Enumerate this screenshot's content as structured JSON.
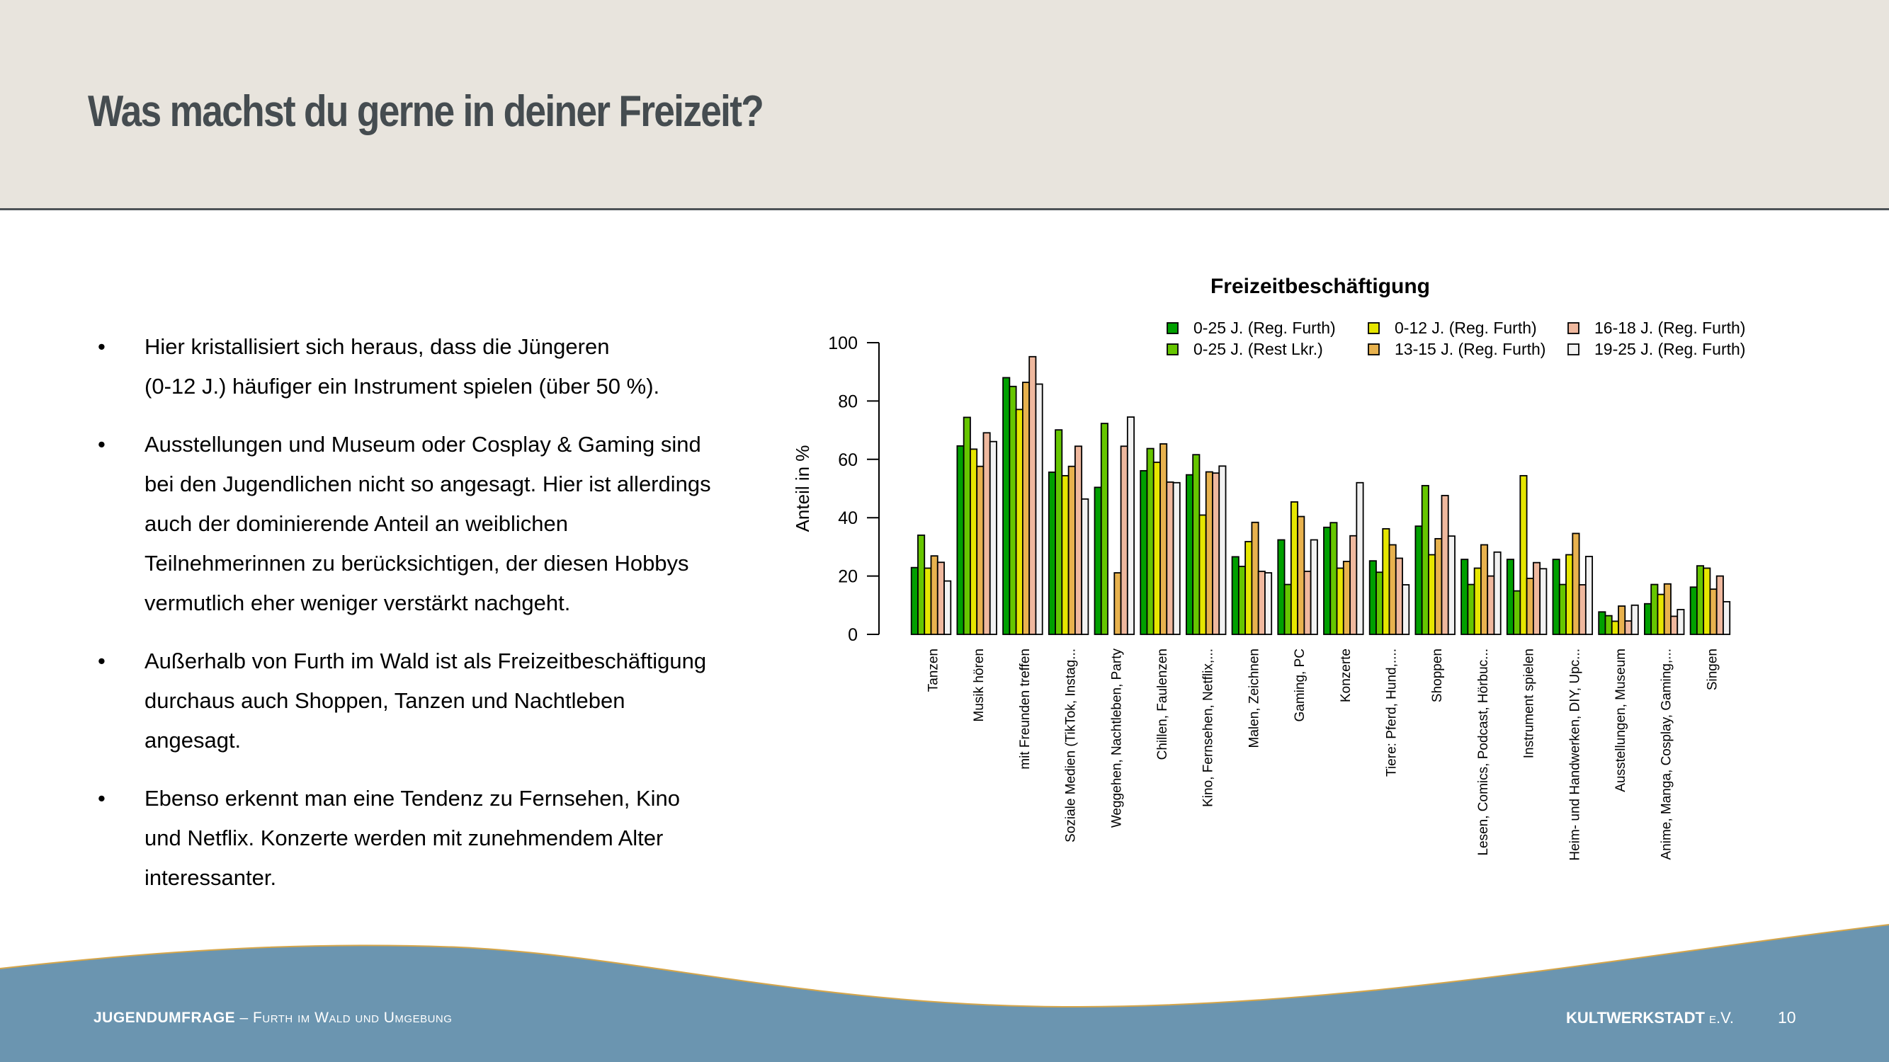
{
  "header": {
    "title": "Was machst du gerne in deiner Freizeit?"
  },
  "bullets": [
    {
      "lines": [
        "Hier kristallisiert sich heraus, dass die Jüngeren",
        "(0-12 J.) häufiger ein Instrument spielen (über 50 %)."
      ]
    },
    {
      "lines": [
        "Ausstellungen und Museum oder Cosplay & Gaming sind",
        "bei den Jugendlichen nicht so angesagt. Hier ist allerdings",
        "auch der dominierende Anteil an weiblichen",
        "Teilnehmerinnen zu berücksichtigen, der diesen Hobbys",
        "vermutlich eher weniger verstärkt nachgeht."
      ]
    },
    {
      "lines": [
        "Außerhalb von Furth im Wald ist als Freizeitbeschäftigung",
        "durchaus auch Shoppen, Tanzen und Nachtleben",
        "angesagt."
      ]
    },
    {
      "lines": [
        "Ebenso erkennt man eine Tendenz zu Fernsehen, Kino",
        "und Netflix. Konzerte werden mit zunehmendem Alter",
        "interessanter."
      ]
    }
  ],
  "bullet_symbol": "•",
  "chart_data": {
    "type": "bar",
    "title": "Freizeitbeschäftigung",
    "xlabel": "",
    "ylabel": "Anteil in %",
    "ylim": [
      0,
      100
    ],
    "yticks": [
      0,
      20,
      40,
      60,
      80,
      100
    ],
    "grid": false,
    "legend_position": "top-right",
    "categories": [
      "Tanzen",
      "Musik hören",
      "mit Freunden treffen",
      "Soziale Medien (TikTok, Instag...",
      "Weggehen, Nachtleben, Party",
      "Chillen, Faulenzen",
      "Kino, Fernsehen, Netflix,...",
      "Malen, Zeichnen",
      "Gaming, PC",
      "Konzerte",
      "Tiere: Pferd, Hund,....",
      "Shoppen",
      "Lesen, Comics, Podcast, Hörbuc...",
      "Instrument spielen",
      "Heim- und Handwerken, DIY, Upc...",
      "Ausstellungen, Museum",
      "Anime, Manga, Cosplay, Gaming,...",
      "Singen"
    ],
    "series": [
      {
        "name": "0-25 J. (Reg. Furth)",
        "color": "#00a000",
        "values": [
          22.9,
          64.6,
          88.0,
          55.6,
          50.4,
          56.1,
          54.7,
          26.6,
          32.4,
          36.7,
          25.2,
          37.1,
          25.7,
          25.7,
          25.7,
          7.7,
          10.5,
          16.2
        ]
      },
      {
        "name": "0-25 J. (Rest Lkr.)",
        "color": "#66c600",
        "values": [
          34.0,
          74.4,
          85.0,
          70.1,
          72.3,
          63.7,
          61.6,
          23.3,
          17.1,
          38.3,
          21.3,
          51.0,
          17.1,
          14.9,
          17.1,
          6.4,
          17.1,
          23.5
        ]
      },
      {
        "name": "0-12 J. (Reg. Furth)",
        "color": "#e6e600",
        "values": [
          22.7,
          63.5,
          77.1,
          54.4,
          0,
          59.0,
          40.9,
          31.8,
          45.4,
          22.7,
          36.2,
          27.3,
          22.7,
          54.4,
          27.3,
          4.5,
          13.7,
          22.7
        ]
      },
      {
        "name": "13-15 J. (Reg. Furth)",
        "color": "#e8b24e",
        "values": [
          26.9,
          57.6,
          86.4,
          57.6,
          21.1,
          65.3,
          55.7,
          38.4,
          40.4,
          25.0,
          30.7,
          32.8,
          30.7,
          19.2,
          34.6,
          9.7,
          17.3,
          15.5
        ]
      },
      {
        "name": "16-18 J. (Reg. Furth)",
        "color": "#efb89e",
        "values": [
          24.7,
          69.1,
          95.2,
          64.5,
          64.5,
          52.2,
          55.3,
          21.6,
          21.6,
          33.8,
          26.1,
          47.6,
          20.0,
          24.6,
          17.0,
          4.6,
          6.2,
          20.0
        ]
      },
      {
        "name": "19-25 J. (Reg. Furth)",
        "color": "#f2f2f2",
        "values": [
          18.3,
          66.1,
          85.8,
          46.4,
          74.5,
          52.0,
          57.7,
          21.1,
          32.4,
          52.0,
          17.0,
          33.7,
          28.2,
          22.5,
          26.7,
          10.0,
          8.5,
          11.2
        ]
      }
    ]
  },
  "footer": {
    "left_strong": "JUGENDUMFRAGE",
    "left_rest": " – Furth im Wald und Umgebung",
    "right_strong": "KULTWERKSTADT",
    "right_rest": " e.V.",
    "page_number": "10",
    "band_color": "#6b95b0",
    "edge_color": "#d6a64a"
  }
}
